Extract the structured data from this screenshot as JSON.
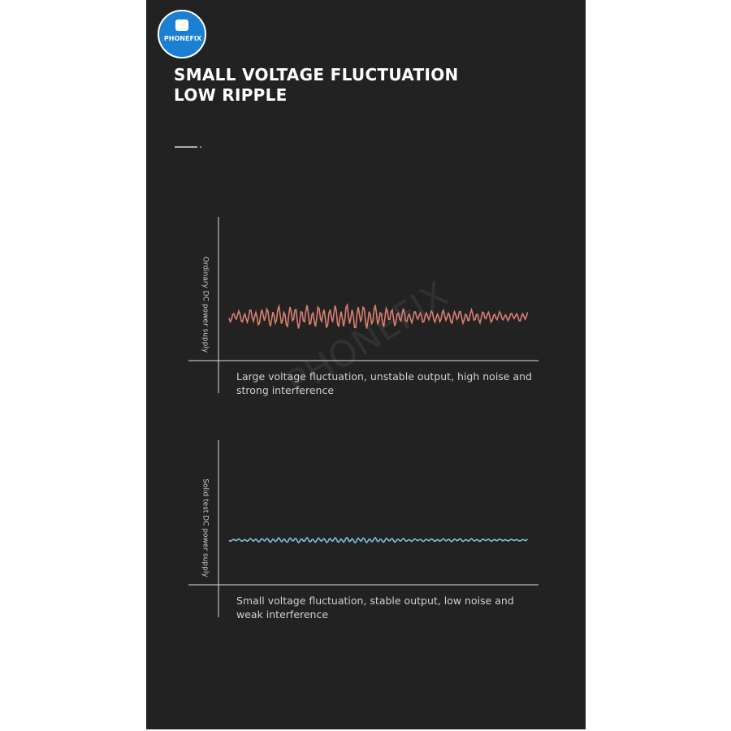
{
  "logo": {
    "text": "PHONEFIX"
  },
  "header": {
    "title_lines": [
      "SMALL VOLTAGE FLUCTUATION",
      "LOW RIPPLE"
    ]
  },
  "watermark": "PHONEFIX",
  "panels": [
    {
      "axis_label": "Ordinary DC power supply",
      "caption": "Large voltage fluctuation, unstable output, high noise and strong interference"
    },
    {
      "axis_label": "Solid test DC power supply",
      "caption": "Small voltage fluctuation, stable output, low noise and weak interference"
    }
  ]
}
